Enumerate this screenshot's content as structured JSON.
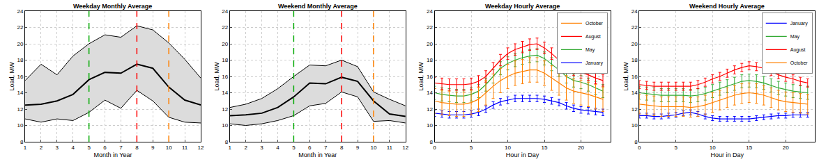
{
  "chart_data": [
    {
      "type": "band",
      "title": "Weekday Monthly Average",
      "xlabel": "Month in Year",
      "ylabel": "Load, MW",
      "x": [
        1,
        2,
        3,
        4,
        5,
        6,
        7,
        8,
        9,
        10,
        11,
        12
      ],
      "values": [
        12.5,
        12.6,
        13.0,
        13.8,
        15.6,
        16.5,
        16.4,
        17.5,
        17.0,
        14.7,
        13.1,
        12.5
      ],
      "upper": [
        15.5,
        17.5,
        16.2,
        18.5,
        20.0,
        21.1,
        20.8,
        22.2,
        21.7,
        20.1,
        18.1,
        15.8
      ],
      "lower": [
        10.8,
        10.4,
        10.8,
        10.6,
        11.6,
        13.1,
        12.1,
        14.3,
        13.0,
        11.0,
        10.4,
        10.3
      ],
      "color": "#000000",
      "vlines": [
        {
          "x": 5,
          "color": "#00aa00",
          "line_style": "dashed"
        },
        {
          "x": 8,
          "color": "#ff0000",
          "line_style": "dashed"
        },
        {
          "x": 10,
          "color": "#ff8000",
          "line_style": "dashed"
        }
      ],
      "xlim": [
        1,
        12
      ],
      "xticks": [
        1,
        2,
        3,
        4,
        5,
        6,
        7,
        8,
        9,
        10,
        11,
        12
      ],
      "ylim": [
        8,
        24
      ],
      "yticks": [
        8,
        10,
        12,
        14,
        16,
        18,
        20,
        22,
        24
      ],
      "grid": true
    },
    {
      "type": "band",
      "title": "Weekend Monthly Average",
      "xlabel": "Month in Year",
      "ylabel": "Load, MW",
      "x": [
        1,
        2,
        3,
        4,
        5,
        6,
        7,
        8,
        9,
        10,
        11,
        12
      ],
      "values": [
        11.2,
        11.3,
        11.5,
        12.2,
        13.5,
        15.2,
        15.1,
        15.9,
        15.4,
        13.0,
        11.4,
        11.1
      ],
      "upper": [
        12.2,
        12.6,
        13.3,
        14.5,
        16.0,
        17.4,
        17.3,
        18.0,
        17.2,
        14.1,
        13.2,
        12.4
      ],
      "lower": [
        10.2,
        10.0,
        10.2,
        10.6,
        11.2,
        12.4,
        12.7,
        14.1,
        13.5,
        10.5,
        10.6,
        10.3
      ],
      "color": "#000000",
      "vlines": [
        {
          "x": 5,
          "color": "#00aa00",
          "line_style": "dashed"
        },
        {
          "x": 8,
          "color": "#ff0000",
          "line_style": "dashed"
        },
        {
          "x": 10,
          "color": "#ff8000",
          "line_style": "dashed"
        }
      ],
      "xlim": [
        1,
        12
      ],
      "xticks": [
        1,
        2,
        3,
        4,
        5,
        6,
        7,
        8,
        9,
        10,
        11,
        12
      ],
      "ylim": [
        8,
        24
      ],
      "yticks": [
        8,
        10,
        12,
        14,
        16,
        18,
        20,
        22,
        24
      ],
      "grid": true
    },
    {
      "type": "line",
      "title": "Weekday Hourly Average",
      "xlabel": "Hour in Day",
      "ylabel": "Load, MW",
      "x": [
        0,
        1,
        2,
        3,
        4,
        5,
        6,
        7,
        8,
        9,
        10,
        11,
        12,
        13,
        14,
        15,
        16,
        17,
        18,
        19,
        20,
        21,
        22,
        23
      ],
      "series": [
        {
          "name": "January",
          "color": "#0000ff",
          "error": 0.4,
          "values": [
            11.5,
            11.4,
            11.3,
            11.3,
            11.3,
            11.4,
            11.6,
            12.0,
            12.5,
            12.9,
            13.1,
            13.3,
            13.3,
            13.3,
            13.3,
            13.2,
            13.0,
            12.8,
            12.4,
            12.1,
            11.9,
            11.8,
            11.7,
            11.6
          ]
        },
        {
          "name": "May",
          "color": "#33aa33",
          "error": 0.8,
          "values": [
            14.0,
            13.8,
            13.7,
            13.6,
            13.6,
            13.8,
            14.2,
            15.0,
            16.0,
            17.0,
            17.6,
            18.0,
            18.3,
            18.5,
            18.6,
            18.2,
            17.5,
            16.8,
            16.0,
            15.5,
            15.3,
            15.0,
            14.6,
            14.2
          ]
        },
        {
          "name": "August",
          "color": "#ff0000",
          "error": 0.7,
          "values": [
            15.2,
            15.1,
            15.0,
            15.0,
            15.0,
            15.1,
            15.4,
            16.0,
            17.0,
            18.0,
            18.8,
            19.3,
            19.6,
            19.9,
            20.0,
            19.5,
            18.8,
            18.0,
            17.2,
            16.8,
            16.5,
            16.2,
            15.8,
            15.5
          ]
        },
        {
          "name": "October",
          "color": "#ff8000",
          "error": 1.5,
          "values": [
            13.0,
            12.8,
            12.7,
            12.6,
            12.6,
            12.8,
            13.2,
            14.0,
            14.8,
            15.5,
            16.0,
            16.4,
            16.6,
            16.8,
            16.8,
            16.4,
            15.8,
            15.2,
            14.6,
            14.2,
            14.0,
            13.8,
            13.5,
            13.2
          ]
        }
      ],
      "legend": "upper right",
      "xlim": [
        0,
        24
      ],
      "xticks": [
        0,
        5,
        10,
        15,
        20
      ],
      "ylim": [
        8,
        24
      ],
      "yticks": [
        8,
        10,
        12,
        14,
        16,
        18,
        20,
        22,
        24
      ],
      "grid": true
    },
    {
      "type": "line",
      "title": "Weekend Hourly Average",
      "xlabel": "Hour in Day",
      "ylabel": "Load, MW",
      "x": [
        0,
        1,
        2,
        3,
        4,
        5,
        6,
        7,
        8,
        9,
        10,
        11,
        12,
        13,
        14,
        15,
        16,
        17,
        18,
        19,
        20,
        21,
        22,
        23
      ],
      "series": [
        {
          "name": "January",
          "color": "#0000ff",
          "error": 0.3,
          "values": [
            11.2,
            11.2,
            11.1,
            11.1,
            11.2,
            11.3,
            11.5,
            11.6,
            11.4,
            11.1,
            10.9,
            10.8,
            10.8,
            10.8,
            10.8,
            10.8,
            10.9,
            11.0,
            11.1,
            11.2,
            11.2,
            11.3,
            11.3,
            11.3
          ]
        },
        {
          "name": "May",
          "color": "#33aa33",
          "error": 0.8,
          "values": [
            14.0,
            13.9,
            13.8,
            13.7,
            13.7,
            13.7,
            13.7,
            13.6,
            13.7,
            13.9,
            14.2,
            14.5,
            14.8,
            15.1,
            15.4,
            15.5,
            15.4,
            15.2,
            14.9,
            14.6,
            14.4,
            14.2,
            14.1,
            14.0
          ]
        },
        {
          "name": "August",
          "color": "#ff0000",
          "error": 0.5,
          "values": [
            15.0,
            14.9,
            14.8,
            14.8,
            14.8,
            14.8,
            14.8,
            14.8,
            15.0,
            15.3,
            15.7,
            16.0,
            16.4,
            16.8,
            17.1,
            17.3,
            17.2,
            17.0,
            16.6,
            16.2,
            15.9,
            15.7,
            15.4,
            15.2
          ]
        },
        {
          "name": "October",
          "color": "#ff8000",
          "error": 1.2,
          "values": [
            12.6,
            12.5,
            12.4,
            12.3,
            12.3,
            12.3,
            12.3,
            12.2,
            12.3,
            12.5,
            12.8,
            13.1,
            13.4,
            13.7,
            13.9,
            14.0,
            13.9,
            13.7,
            13.4,
            13.1,
            12.9,
            12.8,
            12.7,
            12.6
          ]
        }
      ],
      "legend": "upper right",
      "xlim": [
        0,
        24
      ],
      "xticks": [
        0,
        5,
        10,
        15,
        20
      ],
      "ylim": [
        8,
        24
      ],
      "yticks": [
        8,
        10,
        12,
        14,
        16,
        18,
        20,
        22,
        24
      ],
      "grid": true
    }
  ]
}
